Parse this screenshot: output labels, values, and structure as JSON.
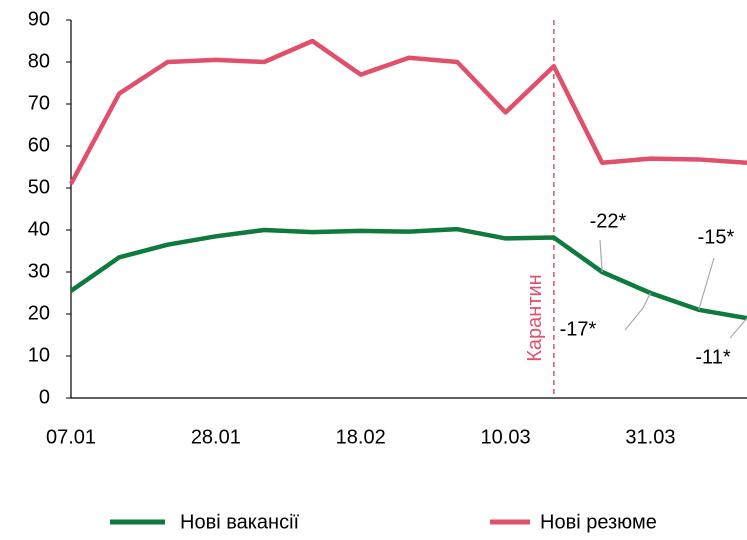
{
  "chart_data": {
    "type": "line",
    "categories": [
      "07.01",
      null,
      null,
      "28.01",
      null,
      null,
      "18.02",
      null,
      null,
      "10.03",
      null,
      null,
      "31.03",
      null,
      null
    ],
    "series": [
      {
        "name": "Нові вакансії",
        "color": "#0e7a3e",
        "values": [
          25.5,
          33.5,
          36.5,
          38.5,
          40,
          39.5,
          39.8,
          39.6,
          40.2,
          38,
          38.2,
          30,
          25,
          21,
          19
        ]
      },
      {
        "name": "Нові резюме",
        "color": "#e0506b",
        "values": [
          51,
          72.5,
          80,
          80.5,
          80,
          85,
          77,
          81,
          80,
          68,
          79,
          56,
          57,
          56.8,
          56
        ]
      }
    ],
    "ylim": [
      0,
      90
    ],
    "yticks": [
      0,
      10,
      20,
      30,
      40,
      50,
      60,
      70,
      80,
      90
    ],
    "annotations": [
      "-22*",
      "-17*",
      "-15*",
      "-11*"
    ],
    "quarantine_label": "Карантин",
    "grid": false
  }
}
